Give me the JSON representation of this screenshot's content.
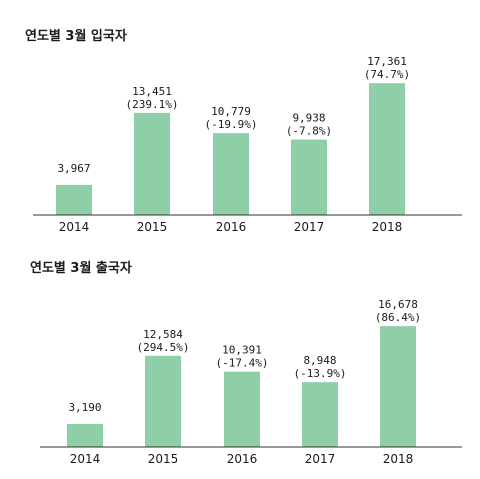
{
  "chart_data": [
    {
      "type": "bar",
      "title": "연도별 3월 입국자",
      "categories": [
        "2014",
        "2015",
        "2016",
        "2017",
        "2018"
      ],
      "values": [
        3967,
        13451,
        10779,
        9938,
        17361
      ],
      "value_labels": [
        "3,967",
        "13,451",
        "10,779",
        "9,938",
        "17,361"
      ],
      "change_labels": [
        "",
        "(239.1%)",
        "(-19.9%)",
        "(-7.8%)",
        "(74.7%)"
      ],
      "ylim": [
        0,
        18700
      ],
      "bar_color": "#8fcfa8",
      "axis_color": "#333333",
      "grid": false
    },
    {
      "type": "bar",
      "title": "연도별 3월 출국자",
      "categories": [
        "2014",
        "2015",
        "2016",
        "2017",
        "2018"
      ],
      "values": [
        3190,
        12584,
        10391,
        8948,
        16678
      ],
      "value_labels": [
        "3,190",
        "12,584",
        "10,391",
        "8,948",
        "16,678"
      ],
      "change_labels": [
        "",
        "(294.5%)",
        "(-17.4%)",
        "(-13.9%)",
        "(86.4%)"
      ],
      "ylim": [
        0,
        17800
      ],
      "bar_color": "#8fcfa8",
      "axis_color": "#333333",
      "grid": false
    }
  ]
}
